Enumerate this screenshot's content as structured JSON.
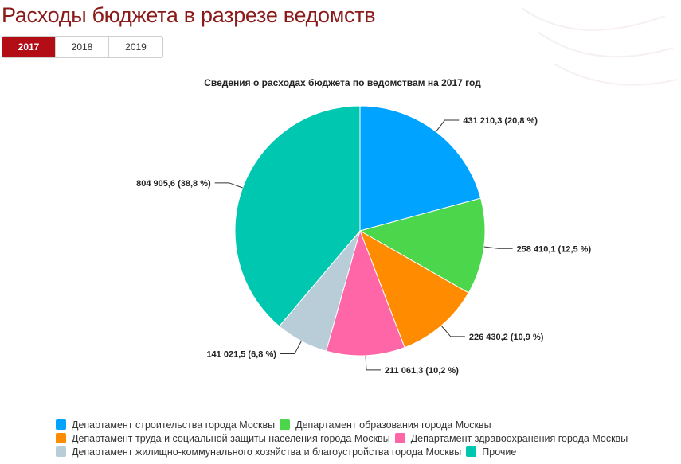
{
  "page": {
    "title": "Расходы бюджета в разрезе ведомств"
  },
  "tabs": [
    {
      "label": "2017",
      "active": true
    },
    {
      "label": "2018",
      "active": false
    },
    {
      "label": "2019",
      "active": false
    }
  ],
  "colors": {
    "accent": "#b30d16",
    "title": "#8b1a1a",
    "stroke": "#ffffff"
  },
  "chart_data": {
    "type": "pie",
    "title": "Сведения о расходах бюджета по ведомствам на 2017 год",
    "series": [
      {
        "name": "Департамент строительства города Москвы",
        "value": 431210.3,
        "label": "431 210,3 (20,8 %)",
        "color": "#00a3ff"
      },
      {
        "name": "Департамент образования города Москвы",
        "value": 258410.1,
        "label": "258 410,1 (12,5 %)",
        "color": "#4cd64c"
      },
      {
        "name": "Департамент труда и социальной защиты населения города Москвы",
        "value": 226430.2,
        "label": "226 430,2 (10,9 %)",
        "color": "#ff8c00"
      },
      {
        "name": "Департамент здравоохранения города Москвы",
        "value": 211061.3,
        "label": "211 061,3 (10,2 %)",
        "color": "#ff66a8"
      },
      {
        "name": "Департамент жилищно-коммунального хозяйства и благоустройства города Москвы",
        "value": 141021.5,
        "label": "141 021,5 (6,8 %)",
        "color": "#b8cdd8"
      },
      {
        "name": "Прочие",
        "value": 804905.6,
        "label": "804 905,6 (38,8 %)",
        "color": "#00c7b0"
      }
    ],
    "legend_position": "bottom"
  }
}
